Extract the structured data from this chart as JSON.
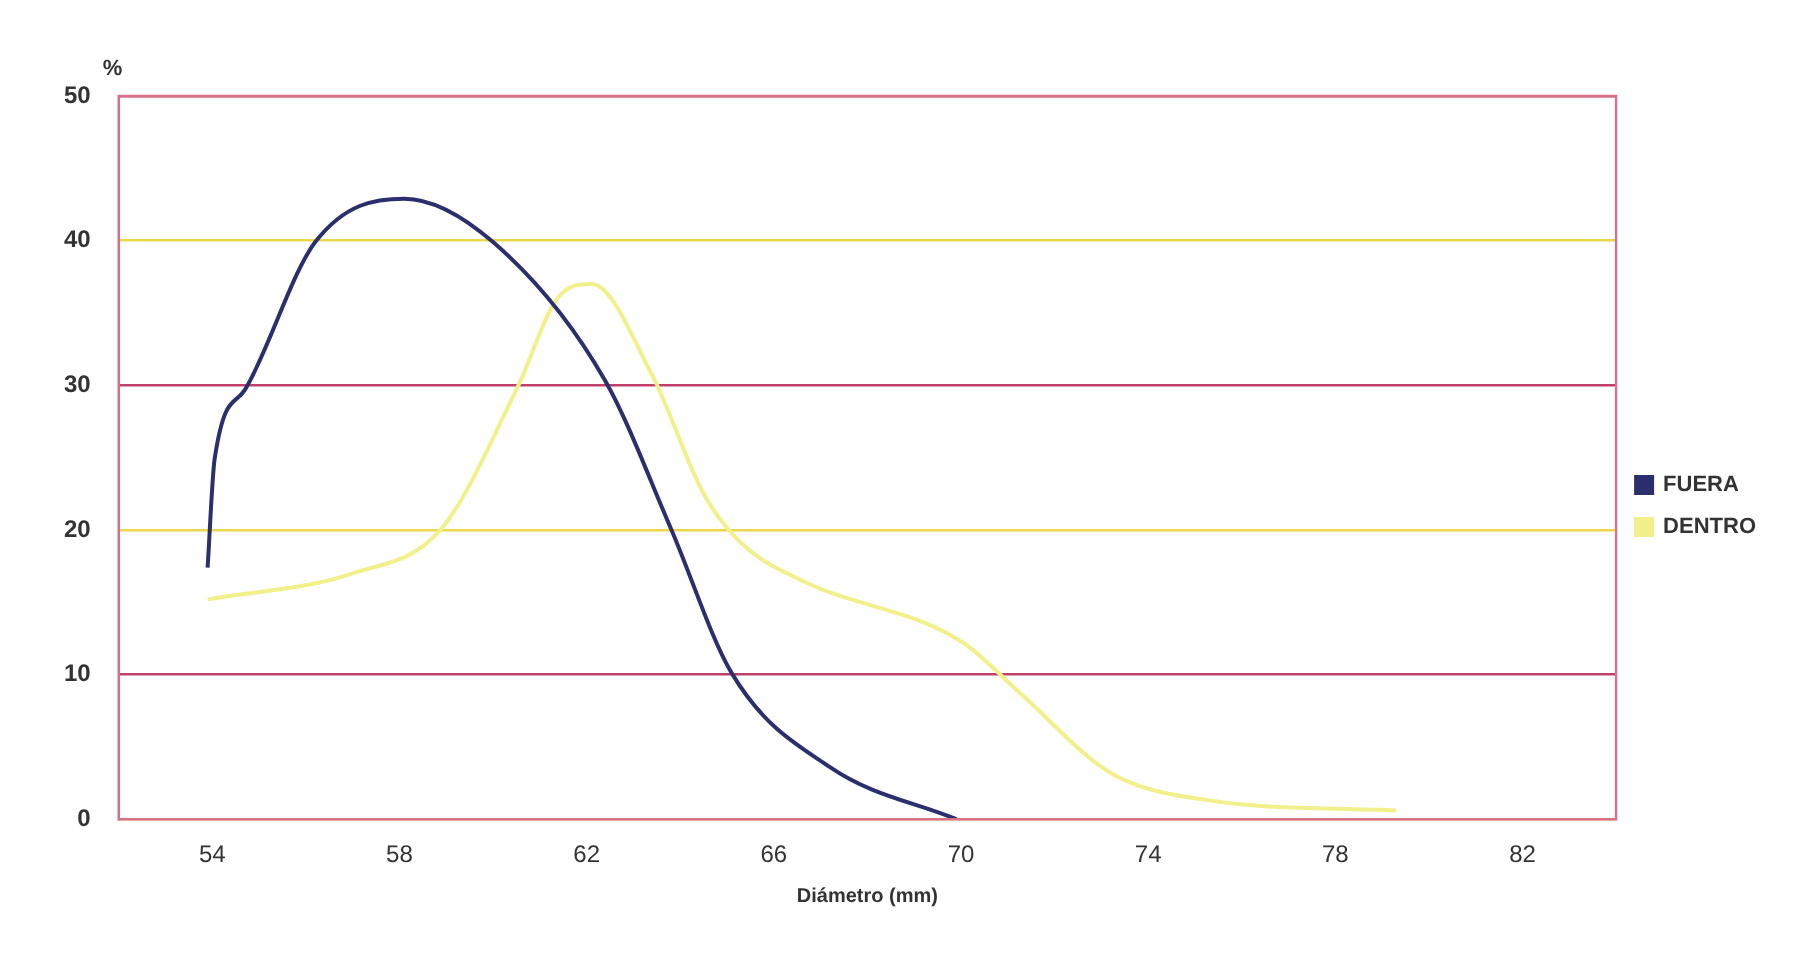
{
  "chart_data": {
    "type": "line",
    "ylabel": "%",
    "xlabel": "Diámetro (mm)",
    "xlim": [
      52,
      84
    ],
    "xticks": [
      54,
      58,
      62,
      66,
      70,
      74,
      78,
      82
    ],
    "ylim": [
      0,
      50
    ],
    "yticks": [
      0,
      10,
      20,
      30,
      40,
      50
    ],
    "grid": "y",
    "legend": "right",
    "marker": "none",
    "line_style": "solid",
    "series": [
      {
        "name": "FUERA",
        "color": "#2b2f6e",
        "x": [
          53.9,
          54.05,
          54.7,
          56.2,
          58.1,
          60.0,
          62.4,
          63.8,
          65.1,
          67.2,
          69.9
        ],
        "values": [
          17.4,
          24.9,
          29.7,
          39.9,
          42.9,
          39.9,
          30.3,
          20.1,
          10.1,
          3.6,
          0
        ]
      },
      {
        "name": "DENTRO",
        "color": "#f2f08a",
        "x": [
          53.9,
          57,
          58.9,
          60.5,
          61.4,
          62.1,
          63.4,
          64.5,
          65.3,
          66.6,
          70.0,
          71.3,
          73.2,
          75.3,
          79.3
        ],
        "values": [
          15.2,
          17,
          20.1,
          29.7,
          36.1,
          37,
          30.7,
          22.5,
          19.1,
          16.5,
          12.3,
          8.6,
          3.2,
          1.3,
          0.6
        ]
      }
    ]
  }
}
